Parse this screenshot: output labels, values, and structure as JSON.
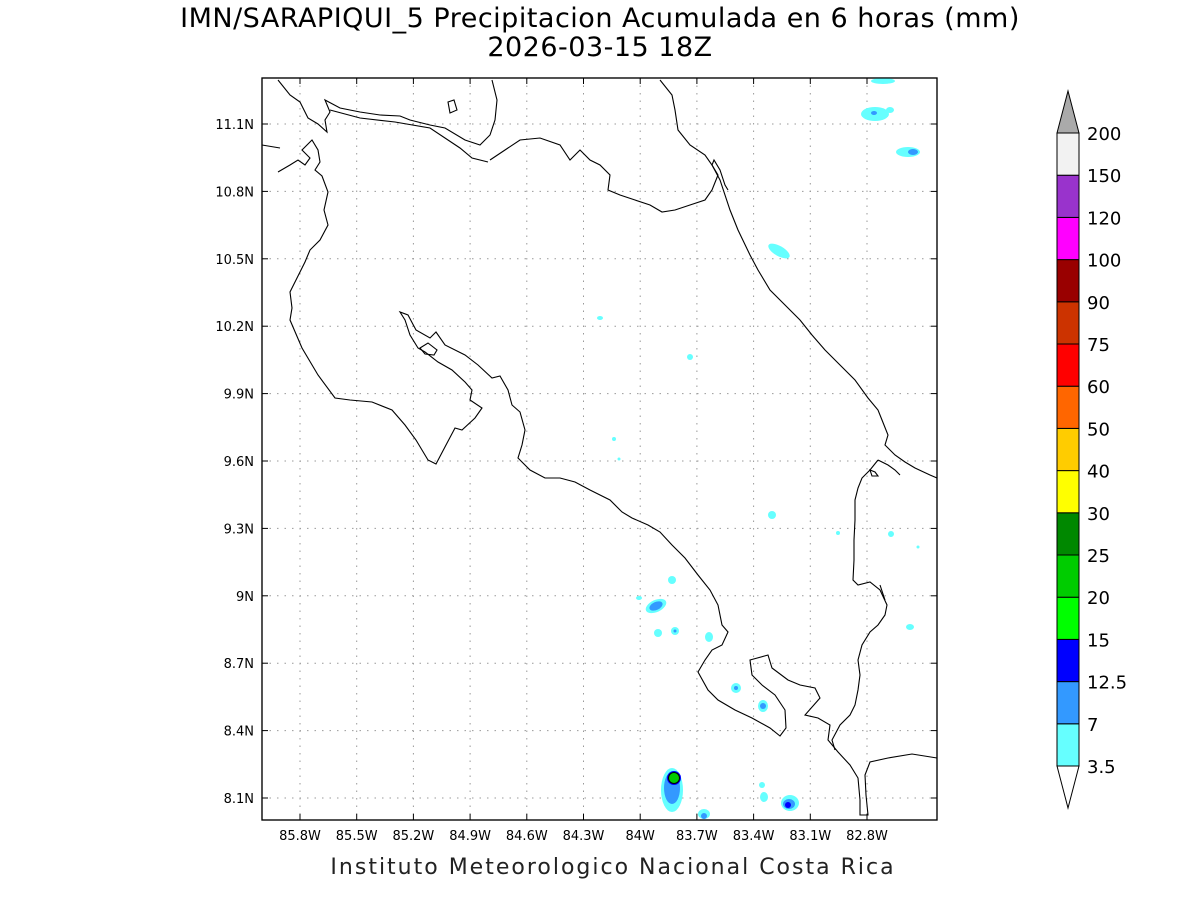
{
  "title": {
    "line1": "IMN/SARAPIQUI_5 Precipitacion Acumulada en 6 horas (mm)",
    "line2": "2026-03-15 18Z"
  },
  "credit": "Instituto Meteorologico Nacional Costa Rica",
  "axes": {
    "lon_ticks": [
      "85.8W",
      "85.5W",
      "85.2W",
      "84.9W",
      "84.6W",
      "84.3W",
      "84W",
      "83.7W",
      "83.4W",
      "83.1W",
      "82.8W"
    ],
    "lat_ticks": [
      "11.1N",
      "10.8N",
      "10.5N",
      "10.2N",
      "9.9N",
      "9.6N",
      "9.3N",
      "9N",
      "8.7N",
      "8.4N",
      "8.1N"
    ]
  },
  "legend": {
    "levels": [
      {
        "label": "3.5",
        "color": "#66ffff"
      },
      {
        "label": "7",
        "color": "#3399ff"
      },
      {
        "label": "12.5",
        "color": "#0000ff"
      },
      {
        "label": "15",
        "color": "#00ff00"
      },
      {
        "label": "20",
        "color": "#00cc00"
      },
      {
        "label": "25",
        "color": "#008800"
      },
      {
        "label": "30",
        "color": "#ffff00"
      },
      {
        "label": "40",
        "color": "#ffcc00"
      },
      {
        "label": "50",
        "color": "#ff6600"
      },
      {
        "label": "60",
        "color": "#ff0000"
      },
      {
        "label": "75",
        "color": "#cc3300"
      },
      {
        "label": "90",
        "color": "#990000"
      },
      {
        "label": "100",
        "color": "#ff00ff"
      },
      {
        "label": "120",
        "color": "#9933cc"
      },
      {
        "label": "150",
        "color": "#f2f2f2"
      },
      {
        "label": "200",
        "color": "#aaaaaa"
      }
    ],
    "bands": [
      "#ffffff",
      "#66ffff",
      "#3399ff",
      "#0000ff",
      "#00ff00",
      "#00cc00",
      "#008800",
      "#ffff00",
      "#ffcc00",
      "#ff6600",
      "#ff0000",
      "#cc3300",
      "#990000",
      "#ff00ff",
      "#9933cc",
      "#f2f2f2",
      "#aaaaaa"
    ]
  }
}
